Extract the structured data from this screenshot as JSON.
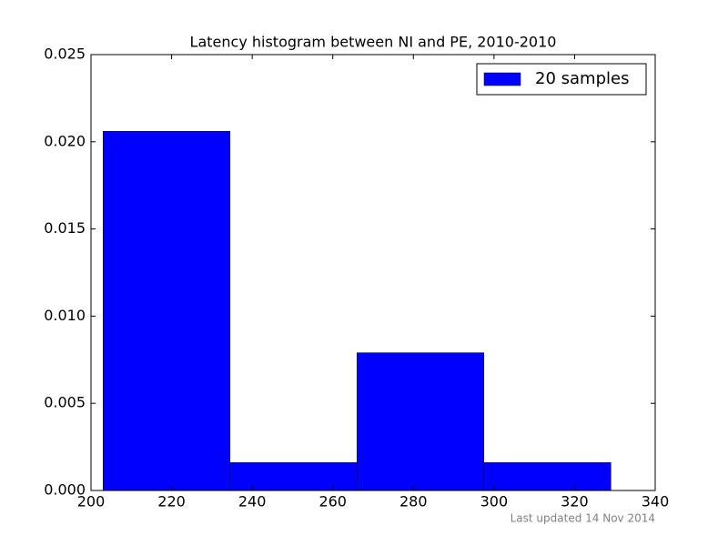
{
  "chart_data": {
    "type": "histogram",
    "title": "Latency histogram between NI and PE, 2010-2010",
    "annotation": "Last updated 14 Nov 2014",
    "bins": [
      203,
      234.5,
      266,
      297.5,
      329
    ],
    "series": [
      {
        "name": "20 samples",
        "color": "#0000ff",
        "values": [
          0.0206,
          0.0016,
          0.0079,
          0.0016
        ]
      }
    ],
    "xlim": [
      200,
      340
    ],
    "xticks": [
      200,
      220,
      240,
      260,
      280,
      300,
      320,
      340
    ],
    "ylim": [
      0,
      0.025
    ],
    "yticks": [
      {
        "value": 0,
        "label": "0.000"
      },
      0.005,
      {
        "value": 0.01,
        "label": "0.010"
      },
      0.015,
      {
        "value": 0.02,
        "label": "0.020"
      },
      0.025
    ],
    "legend": "upper right",
    "grid": false
  }
}
